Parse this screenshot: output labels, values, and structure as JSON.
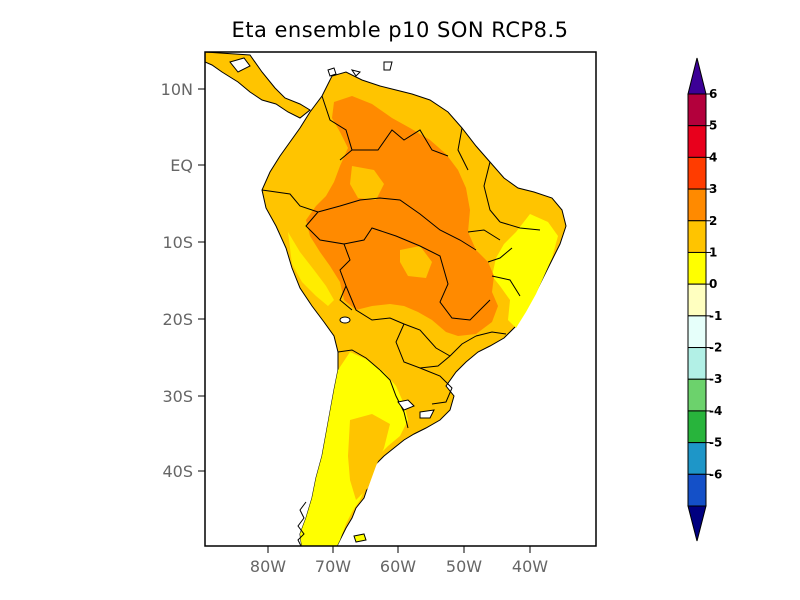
{
  "title": "Eta ensemble p10 SON RCP8.5",
  "map": {
    "lat_labels": [
      "10N",
      "EQ",
      "10S",
      "20S",
      "30S",
      "40S"
    ],
    "lon_labels": [
      "80W",
      "70W",
      "60W",
      "50W",
      "40W"
    ],
    "region": "South America",
    "field_colors": {
      "1_to_2": "#ffff00",
      "2_to_3": "#ffc400",
      "3_to_4": "#ff8a00"
    }
  },
  "colorbar": {
    "labels": [
      "6",
      "5",
      "4",
      "3",
      "2",
      "1",
      "0",
      "-1",
      "-2",
      "-3",
      "-4",
      "-5",
      "-6"
    ],
    "colors": [
      "#b3003c",
      "#e8001c",
      "#ff3c00",
      "#ff8a00",
      "#ffc400",
      "#ffff00",
      "#ffffc0",
      "#e6fffa",
      "#b2f0e6",
      "#6cd26c",
      "#28b43c",
      "#1e96c8",
      "#1450c8"
    ],
    "over_color": "#3c0096",
    "under_color": "#000080"
  }
}
